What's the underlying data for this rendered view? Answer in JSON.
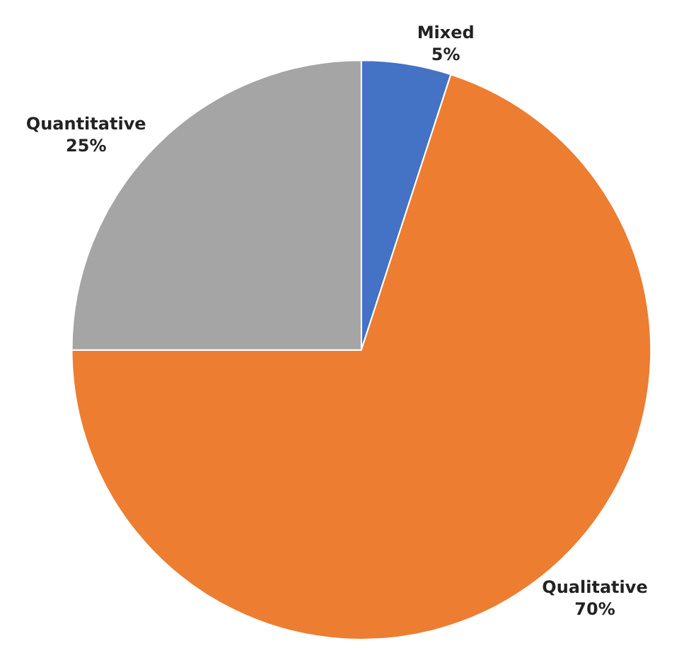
{
  "chart_data": {
    "type": "pie",
    "categories": [
      "Mixed",
      "Qualitative",
      "Quantitative"
    ],
    "values": [
      5,
      70,
      25
    ],
    "value_labels": [
      "5%",
      "70%",
      "25%"
    ],
    "colors": [
      "#4472c4",
      "#ed7d31",
      "#a5a5a5"
    ],
    "legend": false
  }
}
